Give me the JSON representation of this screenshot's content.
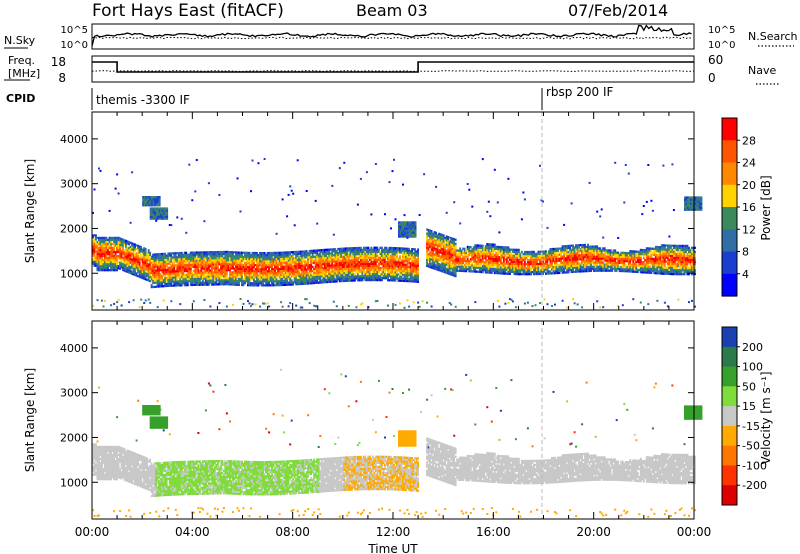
{
  "header": {
    "site": "Fort Hays East (fitACF)",
    "beam": "Beam 03",
    "date": "07/Feb/2014"
  },
  "noise_panel": {
    "left_label": "N.Sky",
    "right_label": "N.Search",
    "left_ticks": [
      "10^5",
      "10^0"
    ],
    "right_ticks": [
      "10^5",
      "10^0"
    ]
  },
  "freq_panel": {
    "left_label_1": "Freq.",
    "left_label_2": "[MHz]",
    "right_label": "Nave",
    "left_ticks": [
      "18",
      "8"
    ],
    "right_ticks": [
      "60",
      "0"
    ]
  },
  "cpid_panel": {
    "label": "CPID",
    "modes": [
      {
        "name": "themis -3300 IF",
        "start_hour": 0
      },
      {
        "name": "rbsp 200 IF",
        "start_hour": 18
      }
    ]
  },
  "x_axis": {
    "label": "Time UT",
    "ticks": [
      "00:00",
      "04:00",
      "08:00",
      "12:00",
      "16:00",
      "20:00",
      "00:00"
    ]
  },
  "chart_data": [
    {
      "type": "heatmap",
      "name": "power",
      "ylabel": "Slant Range [km]",
      "yticks": [
        1000,
        2000,
        3000,
        4000
      ],
      "ylim": [
        180,
        4600
      ],
      "xlim": [
        0,
        24
      ],
      "colorbar": {
        "label": "Power [dB]",
        "ticks": [
          "28",
          "24",
          "20",
          "16",
          "12",
          "8",
          "4"
        ],
        "colors": [
          "#ff0000",
          "#ff5500",
          "#ff8800",
          "#ffd200",
          "#3a8a5a",
          "#2f6fa5",
          "#1a3fd0",
          "#0000ff"
        ]
      }
    },
    {
      "type": "heatmap",
      "name": "velocity",
      "ylabel": "Slant Range [km]",
      "yticks": [
        1000,
        2000,
        3000,
        4000
      ],
      "ylim": [
        180,
        4600
      ],
      "xlim": [
        0,
        24
      ],
      "colorbar": {
        "label": "Velocity [m s⁻¹]",
        "ticks": [
          "200",
          "100",
          "50",
          "15",
          "-15",
          "-50",
          "-100",
          "-200"
        ],
        "colors": [
          "#1a3fb0",
          "#2a7a4a",
          "#35a02a",
          "#7fdc3a",
          "#c8c8c8",
          "#ffaa00",
          "#ff7700",
          "#ff3300",
          "#dd0000"
        ]
      }
    }
  ]
}
